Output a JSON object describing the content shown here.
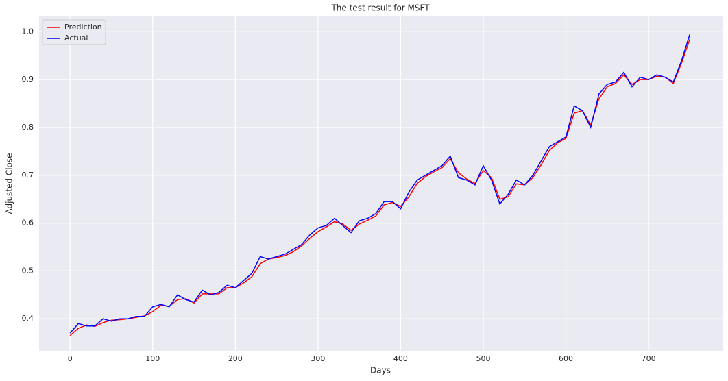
{
  "chart_data": {
    "type": "line",
    "title": "The test result for MSFT",
    "xlabel": "Days",
    "ylabel": "Adjusted Close",
    "x": [
      0,
      10,
      20,
      30,
      40,
      50,
      60,
      70,
      80,
      90,
      100,
      110,
      120,
      130,
      140,
      150,
      160,
      170,
      180,
      190,
      200,
      210,
      220,
      230,
      240,
      250,
      260,
      270,
      280,
      290,
      300,
      310,
      320,
      330,
      340,
      350,
      360,
      370,
      380,
      390,
      400,
      410,
      420,
      430,
      440,
      450,
      460,
      470,
      480,
      490,
      500,
      510,
      520,
      530,
      540,
      550,
      560,
      570,
      580,
      590,
      600,
      610,
      620,
      630,
      640,
      650,
      660,
      670,
      680,
      690,
      700,
      710,
      720,
      730,
      740,
      750
    ],
    "series": [
      {
        "name": "Prediction",
        "color": "#ff0000",
        "values": [
          0.365,
          0.38,
          0.387,
          0.384,
          0.392,
          0.397,
          0.398,
          0.4,
          0.403,
          0.406,
          0.415,
          0.428,
          0.426,
          0.44,
          0.442,
          0.433,
          0.452,
          0.452,
          0.452,
          0.465,
          0.465,
          0.475,
          0.488,
          0.515,
          0.525,
          0.528,
          0.532,
          0.54,
          0.552,
          0.568,
          0.582,
          0.592,
          0.603,
          0.598,
          0.585,
          0.598,
          0.606,
          0.615,
          0.638,
          0.643,
          0.635,
          0.655,
          0.683,
          0.697,
          0.707,
          0.716,
          0.735,
          0.705,
          0.692,
          0.683,
          0.71,
          0.695,
          0.65,
          0.655,
          0.682,
          0.68,
          0.695,
          0.722,
          0.752,
          0.768,
          0.777,
          0.83,
          0.835,
          0.805,
          0.86,
          0.885,
          0.892,
          0.91,
          0.89,
          0.9,
          0.9,
          0.907,
          0.905,
          0.892,
          0.935,
          0.985
        ]
      },
      {
        "name": "Actual",
        "color": "#0000ff",
        "values": [
          0.37,
          0.39,
          0.385,
          0.385,
          0.4,
          0.395,
          0.4,
          0.4,
          0.405,
          0.405,
          0.425,
          0.43,
          0.425,
          0.45,
          0.44,
          0.435,
          0.46,
          0.45,
          0.455,
          0.47,
          0.465,
          0.48,
          0.495,
          0.53,
          0.525,
          0.53,
          0.535,
          0.545,
          0.555,
          0.575,
          0.59,
          0.595,
          0.61,
          0.595,
          0.58,
          0.605,
          0.61,
          0.62,
          0.645,
          0.645,
          0.63,
          0.665,
          0.69,
          0.7,
          0.71,
          0.72,
          0.74,
          0.695,
          0.69,
          0.68,
          0.72,
          0.69,
          0.64,
          0.66,
          0.69,
          0.68,
          0.7,
          0.73,
          0.76,
          0.77,
          0.78,
          0.845,
          0.835,
          0.8,
          0.87,
          0.89,
          0.895,
          0.915,
          0.885,
          0.905,
          0.9,
          0.91,
          0.905,
          0.895,
          0.94,
          0.995
        ]
      }
    ],
    "xlim": [
      -37.5,
      789.5
    ],
    "ylim": [
      0.333,
      1.032
    ],
    "xticks": [
      0,
      100,
      200,
      300,
      400,
      500,
      600,
      700
    ],
    "yticks": [
      0.4,
      0.5,
      0.6,
      0.7,
      0.8,
      0.9,
      {
        "value": 1,
        "label": "1.0"
      }
    ],
    "grid": true,
    "legend": "upper-left"
  }
}
